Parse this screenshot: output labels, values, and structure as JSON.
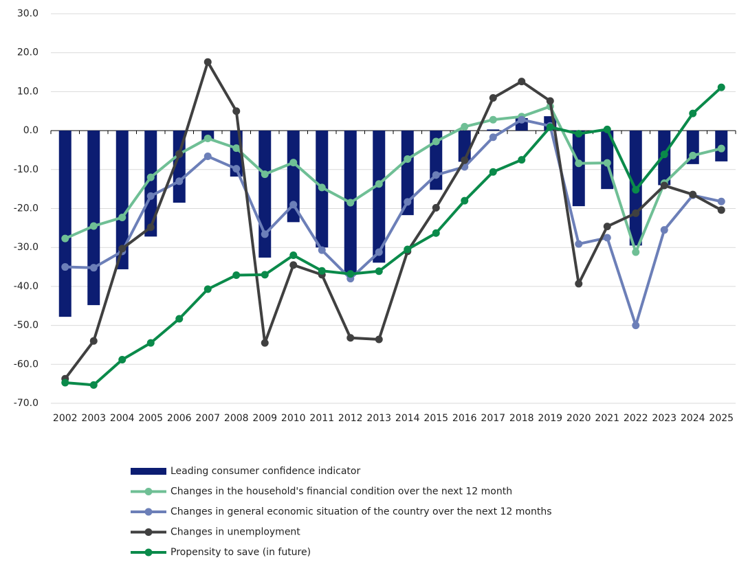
{
  "chart_data": {
    "type": "bar-line",
    "categories": [
      "2002",
      "2003",
      "2004",
      "2005",
      "2006",
      "2007",
      "2008",
      "2009",
      "2010",
      "2011",
      "2012",
      "2013",
      "2014",
      "2015",
      "2016",
      "2017",
      "2018",
      "2019",
      "2020",
      "2021",
      "2022",
      "2023",
      "2024",
      "2025"
    ],
    "ylim": [
      -70,
      30
    ],
    "yticks": [
      {
        "value": -70,
        "label": "-70.0"
      },
      {
        "value": -60,
        "label": "-60.0"
      },
      {
        "value": -50,
        "label": "-50.0"
      },
      {
        "value": -40,
        "label": "-40.0"
      },
      {
        "value": -30,
        "label": "-30.0"
      },
      {
        "value": -20,
        "label": "-20.0"
      },
      {
        "value": -10,
        "label": "-10.0"
      },
      {
        "value": 0,
        "label": "0.0"
      },
      {
        "value": 10,
        "label": "10.0"
      },
      {
        "value": 20,
        "label": "20.0"
      },
      {
        "value": 30,
        "label": "30.0"
      }
    ],
    "grid": true,
    "series": [
      {
        "name": "Leading consumer confidence indicator",
        "kind": "bar",
        "color": "#0c1d72",
        "values": [
          -47.8,
          -44.8,
          -35.6,
          -27.2,
          -18.5,
          -2.5,
          -11.8,
          -32.6,
          -23.5,
          -30,
          -36.7,
          -33.9,
          -21.7,
          -15.2,
          -8,
          0.3,
          3.2,
          3.7,
          -19.4,
          -15,
          -29.5,
          -14,
          -8.6,
          -7.9
        ]
      },
      {
        "name": "Changes in the household's financial condition over the next 12 month",
        "kind": "line",
        "color": "#6fbf95",
        "values": [
          -27.7,
          -24.5,
          -22.3,
          -12,
          -6,
          -2,
          -4.5,
          -11.2,
          -8.2,
          -14.6,
          -18.5,
          -13.7,
          -7.3,
          -2.8,
          1,
          2.8,
          3.6,
          6.2,
          -8.4,
          -8.3,
          -31.2,
          -13.5,
          -6.4,
          -4.6
        ]
      },
      {
        "name": "Changes in general economic situation of the country over the next 12 months",
        "kind": "line",
        "color": "#6c7fb8",
        "values": [
          -35,
          -35.2,
          -31,
          -16.8,
          -13,
          -6.6,
          -9.8,
          -26.6,
          -19,
          -30.7,
          -38,
          -31.2,
          -18.3,
          -11.4,
          -9.3,
          -1.7,
          2.8,
          1.2,
          -29.1,
          -27.5,
          -50,
          -25.5,
          -16.6,
          -18.2
        ]
      },
      {
        "name": "Changes in unemployment",
        "kind": "line",
        "color": "#404040",
        "values": [
          -63.7,
          -54,
          -30.3,
          -24.8,
          -6,
          17.6,
          5,
          -54.5,
          -34.5,
          -37,
          -53.2,
          -53.6,
          -31,
          -19.8,
          -7.6,
          8.4,
          12.6,
          7.6,
          -39.3,
          -24.6,
          -21.2,
          -14.1,
          -16.4,
          -20.4
        ]
      },
      {
        "name": "Propensity to save (in future)",
        "kind": "line",
        "color": "#0a8a4a",
        "values": [
          -64.7,
          -65.3,
          -58.8,
          -54.5,
          -48.3,
          -40.7,
          -37.1,
          -37,
          -32,
          -36,
          -36.8,
          -36.1,
          -30.5,
          -26.3,
          -18,
          -10.6,
          -7.5,
          0.9,
          -0.8,
          0.3,
          -15.2,
          -6.1,
          4.4,
          11.1
        ]
      }
    ]
  }
}
